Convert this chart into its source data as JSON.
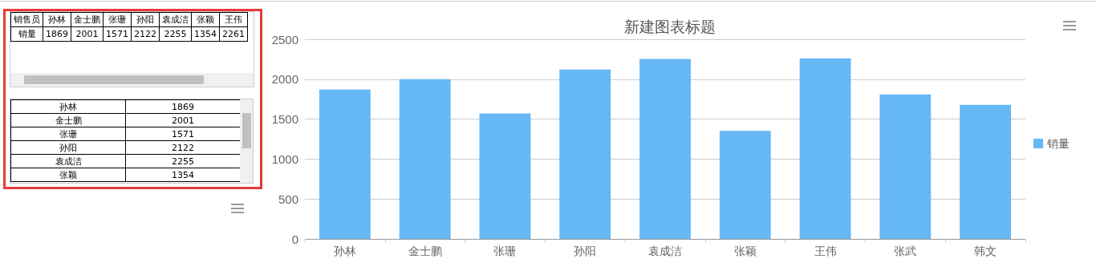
{
  "chart_data": [
    {
      "type": "other",
      "annotations": [
        "销售员"
      ],
      "data_labels": true,
      "categories": [
        "孙林",
        "金士鹏",
        "张珊",
        "孙阳",
        "袁成洁",
        "张颖",
        "王伟"
      ],
      "series": [
        {
          "name": "销量",
          "values": [
            1869,
            2001,
            1571,
            2122,
            2255,
            1354,
            2261
          ]
        }
      ]
    },
    {
      "type": "other",
      "data_labels": true,
      "categories": [
        "孙林",
        "金士鹏",
        "张珊",
        "孙阳",
        "袁成洁",
        "张颖"
      ],
      "series": [
        {
          "values": [
            1869,
            2001,
            1571,
            2122,
            2255,
            1354
          ]
        }
      ]
    },
    {
      "type": "bar",
      "title": "新建图表标题",
      "categories": [
        "孙林",
        "金士鹏",
        "张珊",
        "孙阳",
        "袁成洁",
        "张颖",
        "王伟",
        "张武",
        "韩文"
      ],
      "series": [
        {
          "name": "销量",
          "color": "#66b8f5",
          "values": [
            1869,
            2001,
            1571,
            2122,
            2255,
            1354,
            2261,
            1810,
            1680
          ]
        }
      ],
      "ylim": [
        0,
        2500
      ],
      "yticks": [
        0,
        500,
        1000,
        1500,
        2000,
        2500
      ],
      "grid": "y",
      "legend": "right"
    }
  ]
}
